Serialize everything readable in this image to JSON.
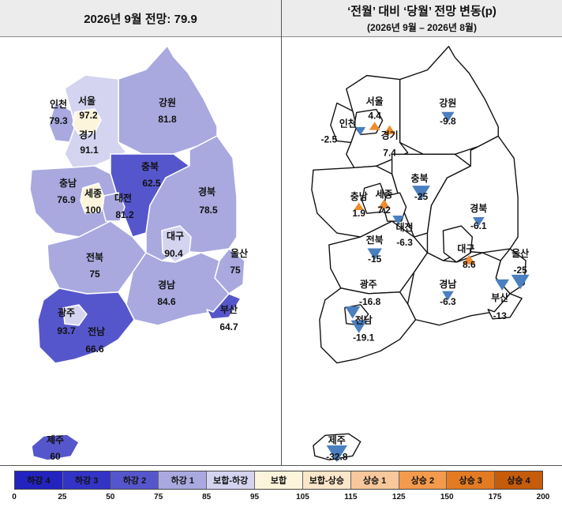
{
  "left_title": "2026년 9월 전망: 79.9",
  "right_title": "‘전월’ 대비 ‘당월’ 전망 변동(p)",
  "right_subtitle": "(2026년 9월 – 2026년 8월)",
  "colors": {
    "ha4": "#2323c0",
    "ha3": "#3333c6",
    "ha2": "#5656cc",
    "ha1": "#a9a9e0",
    "bohap_ha": "#d4d4f0",
    "bohap": "#fcf5dc",
    "bohap_up": "#fbe6c9",
    "up1": "#f8c79b",
    "up2": "#f39a4c",
    "up3": "#e27b22",
    "up4": "#c45c0c",
    "down_marker": "#4a7fc0",
    "up_marker": "#ee8c2c"
  },
  "regions": [
    {
      "key": "seoul",
      "name": "서울",
      "value": "97.2",
      "change": "4.4",
      "dir": "up"
    },
    {
      "key": "incheon",
      "name": "인천",
      "value": "79.3",
      "change": "-2.5",
      "dir": "down"
    },
    {
      "key": "gyeonggi",
      "name": "경기",
      "value": "91.1",
      "change": "7.4",
      "dir": "up"
    },
    {
      "key": "gangwon",
      "name": "강원",
      "value": "81.8",
      "change": "-9.8",
      "dir": "down"
    },
    {
      "key": "chungbuk",
      "name": "충북",
      "value": "62.5",
      "change": "-25",
      "dir": "down"
    },
    {
      "key": "chungnam",
      "name": "충남",
      "value": "76.9",
      "change": "1.9",
      "dir": "up"
    },
    {
      "key": "sejong",
      "name": "세종",
      "value": "100",
      "change": "7.2",
      "dir": "up"
    },
    {
      "key": "daejeon",
      "name": "대전",
      "value": "81.2",
      "change": "-6.3",
      "dir": "down"
    },
    {
      "key": "gyeongbuk",
      "name": "경북",
      "value": "78.5",
      "change": "-6.1",
      "dir": "down"
    },
    {
      "key": "daegu",
      "name": "대구",
      "value": "90.4",
      "change": "8.6",
      "dir": "up"
    },
    {
      "key": "jeonbuk",
      "name": "전북",
      "value": "75",
      "change": "-15",
      "dir": "down"
    },
    {
      "key": "ulsan",
      "name": "울산",
      "value": "75",
      "change": "-25",
      "dir": "down"
    },
    {
      "key": "gyeongnam",
      "name": "경남",
      "value": "84.6",
      "change": "-6.3",
      "dir": "down"
    },
    {
      "key": "gwangju",
      "name": "광주",
      "value": "93.7",
      "change": "-16.8",
      "dir": "down"
    },
    {
      "key": "busan",
      "name": "부산",
      "value": "64.7",
      "change": "-13",
      "dir": "down"
    },
    {
      "key": "jeonnam",
      "name": "전남",
      "value": "66.6",
      "change": "-19.1",
      "dir": "down"
    },
    {
      "key": "jeju",
      "name": "제주",
      "value": "60",
      "change": "-32.8",
      "dir": "down"
    }
  ],
  "legend": {
    "bins": [
      "하강 4",
      "하강 3",
      "하강 2",
      "하강 1",
      "보합-하강",
      "보합",
      "보합-상승",
      "상승 1",
      "상승 2",
      "상승 3",
      "상승 4"
    ],
    "ticks": [
      "0",
      "25",
      "50",
      "75",
      "85",
      "95",
      "105",
      "115",
      "125",
      "150",
      "175",
      "200"
    ]
  }
}
